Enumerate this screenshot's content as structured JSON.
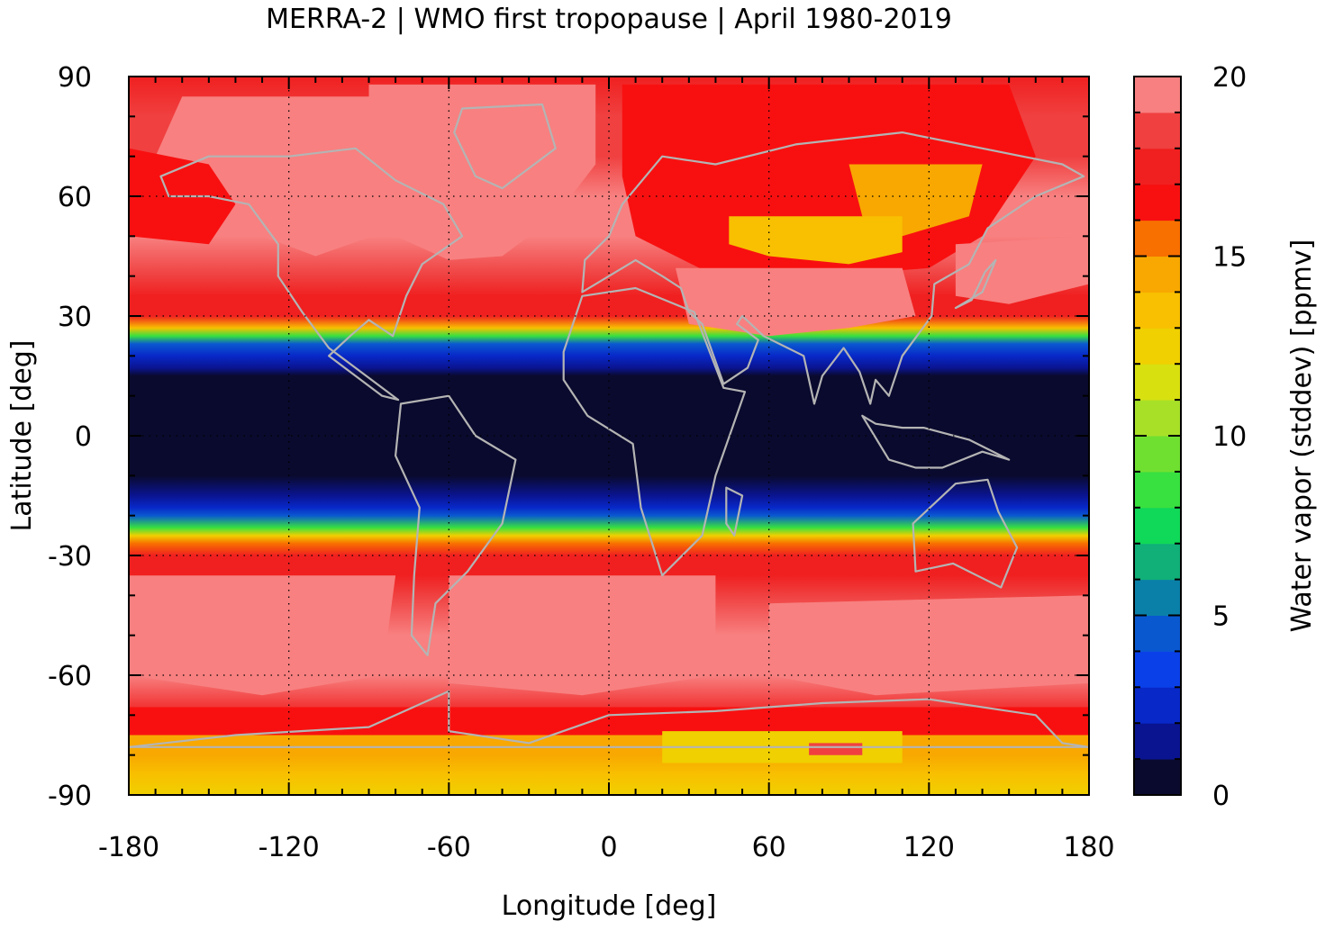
{
  "title": "MERRA-2 | WMO first tropopause | April 1980-2019",
  "map": {
    "xlabel": "Longitude [deg]",
    "ylabel": "Latitude [deg]",
    "xlim": [
      -180,
      180
    ],
    "ylim": [
      -90,
      90
    ],
    "xticks": [
      "-180",
      "-120",
      "-60",
      "0",
      "60",
      "120",
      "180"
    ],
    "yticks": [
      "-90",
      "-60",
      "-30",
      "0",
      "30",
      "60",
      "90"
    ],
    "grid": true,
    "coastline_color": "#b4b4b4"
  },
  "colorbar": {
    "label": "Water vapor (stddev) [ppmv]",
    "ticks": [
      "0",
      "5",
      "10",
      "15",
      "20"
    ],
    "range": [
      0,
      20
    ],
    "step": 1,
    "colors": [
      "#0a0a2e",
      "#0a1490",
      "#0828c8",
      "#0a40e8",
      "#0a58d0",
      "#0a80a8",
      "#10b078",
      "#10d858",
      "#38e040",
      "#70e030",
      "#a8e028",
      "#d8e010",
      "#f0d000",
      "#f8c000",
      "#f8a800",
      "#f87000",
      "#f81010",
      "#f02020",
      "#f04040",
      "#f88080",
      "#ffc8c8"
    ]
  },
  "chart_data": {
    "type": "heatmap",
    "title": "MERRA-2 | WMO first tropopause | April 1980-2019",
    "xlabel": "Longitude [deg]",
    "ylabel": "Latitude [deg]",
    "xlim": [
      -180,
      180
    ],
    "ylim": [
      -90,
      90
    ],
    "colorbar_label": "Water vapor (stddev) [ppmv]",
    "colorbar_range": [
      0,
      20
    ],
    "zonal_profile": {
      "lat": [
        90,
        80,
        70,
        60,
        50,
        40,
        35,
        30,
        27,
        25,
        23,
        20,
        17,
        15,
        10,
        5,
        0,
        -5,
        -10,
        -15,
        -18,
        -20,
        -23,
        -25,
        -27,
        -30,
        -35,
        -40,
        -50,
        -60,
        -70,
        -75,
        -80,
        -85,
        -90
      ],
      "value": [
        17,
        18,
        18,
        19,
        19,
        18,
        17,
        17,
        13,
        8,
        4,
        2,
        1,
        0.5,
        0.3,
        0.2,
        0.2,
        0.2,
        0.3,
        1,
        2,
        4,
        8,
        12,
        15,
        17,
        17,
        18,
        19,
        19,
        17,
        15,
        14,
        13,
        12
      ]
    }
  }
}
